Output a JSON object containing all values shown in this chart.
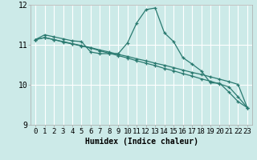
{
  "title": "",
  "xlabel": "Humidex (Indice chaleur)",
  "ylabel": "",
  "background_color": "#cceae8",
  "line_color": "#2a7a70",
  "grid_color": "#ffffff",
  "xlim": [
    -0.5,
    23.5
  ],
  "ylim": [
    9,
    12
  ],
  "yticks": [
    9,
    10,
    11,
    12
  ],
  "xticks": [
    0,
    1,
    2,
    3,
    4,
    5,
    6,
    7,
    8,
    9,
    10,
    11,
    12,
    13,
    14,
    15,
    16,
    17,
    18,
    19,
    20,
    21,
    22,
    23
  ],
  "series1_x": [
    0,
    1,
    2,
    3,
    4,
    5,
    6,
    7,
    8,
    9,
    10,
    11,
    12,
    13,
    14,
    15,
    16,
    17,
    18,
    19,
    20,
    21,
    22,
    23
  ],
  "series1_y": [
    11.13,
    11.25,
    11.2,
    11.15,
    11.1,
    11.08,
    10.82,
    10.78,
    10.78,
    10.78,
    11.05,
    11.55,
    11.88,
    11.92,
    11.3,
    11.08,
    10.68,
    10.52,
    10.35,
    10.05,
    10.04,
    9.82,
    9.58,
    9.43
  ],
  "series2_x": [
    0,
    1,
    2,
    3,
    4,
    5,
    6,
    7,
    8,
    9,
    10,
    11,
    12,
    13,
    14,
    15,
    16,
    17,
    18,
    19,
    20,
    21,
    22,
    23
  ],
  "series2_y": [
    11.13,
    11.18,
    11.13,
    11.08,
    11.03,
    10.98,
    10.93,
    10.87,
    10.82,
    10.76,
    10.71,
    10.65,
    10.6,
    10.54,
    10.49,
    10.43,
    10.37,
    10.31,
    10.26,
    10.2,
    10.14,
    10.08,
    10.01,
    9.43
  ],
  "series3_x": [
    0,
    1,
    2,
    3,
    4,
    5,
    6,
    7,
    8,
    9,
    10,
    11,
    12,
    13,
    14,
    15,
    16,
    17,
    18,
    19,
    20,
    21,
    22,
    23
  ],
  "series3_y": [
    11.13,
    11.18,
    11.13,
    11.07,
    11.02,
    10.97,
    10.92,
    10.85,
    10.79,
    10.73,
    10.67,
    10.6,
    10.54,
    10.48,
    10.41,
    10.35,
    10.28,
    10.22,
    10.15,
    10.09,
    10.02,
    9.95,
    9.7,
    9.43
  ],
  "tick_fontsize": 6.5,
  "xlabel_fontsize": 7,
  "ytick_fontsize": 7
}
